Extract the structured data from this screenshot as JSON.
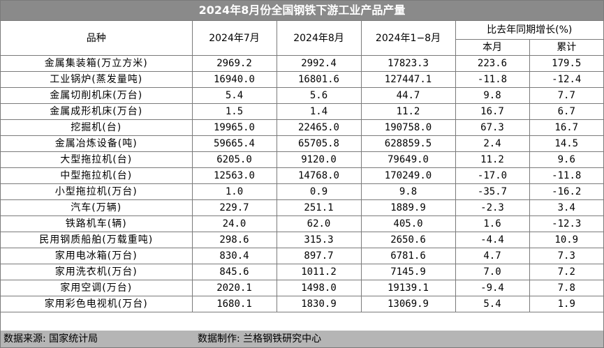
{
  "title": "2024年8月份全国钢铁下游工业产品产量",
  "headers": {
    "product": "品种",
    "jul": "2024年7月",
    "aug": "2024年8月",
    "ytd": "2024年1−8月",
    "yoy": "比去年同期增长(%)",
    "month": "本月",
    "cumulative": "累计"
  },
  "rows": [
    {
      "name": "金属集装箱(万立方米)",
      "jul": "2969.2",
      "aug": "2992.4",
      "ytd": "17823.3",
      "month": "223.6",
      "cum": "179.5"
    },
    {
      "name": "工业锅炉(蒸发量吨)",
      "jul": "16940.0",
      "aug": "16801.6",
      "ytd": "127447.1",
      "month": "-11.8",
      "cum": "-12.4"
    },
    {
      "name": "金属切削机床(万台)",
      "jul": "5.4",
      "aug": "5.6",
      "ytd": "44.7",
      "month": "9.8",
      "cum": "7.7"
    },
    {
      "name": "金属成形机床(万台)",
      "jul": "1.5",
      "aug": "1.4",
      "ytd": "11.2",
      "month": "16.7",
      "cum": "6.7"
    },
    {
      "name": "挖掘机(台)",
      "jul": "19965.0",
      "aug": "22465.0",
      "ytd": "190758.0",
      "month": "67.3",
      "cum": "16.7"
    },
    {
      "name": "金属冶炼设备(吨)",
      "jul": "59665.4",
      "aug": "65705.8",
      "ytd": "628859.5",
      "month": "2.4",
      "cum": "14.5"
    },
    {
      "name": "大型拖拉机(台)",
      "jul": "6205.0",
      "aug": "9120.0",
      "ytd": "79649.0",
      "month": "11.2",
      "cum": "9.6"
    },
    {
      "name": "中型拖拉机(台)",
      "jul": "12563.0",
      "aug": "14768.0",
      "ytd": "170249.0",
      "month": "-17.0",
      "cum": "-11.8"
    },
    {
      "name": "小型拖拉机(万台)",
      "jul": "1.0",
      "aug": "0.9",
      "ytd": "9.8",
      "month": "-35.7",
      "cum": "-16.2"
    },
    {
      "name": "汽车(万辆)",
      "jul": "229.7",
      "aug": "251.1",
      "ytd": "1889.9",
      "month": "-2.3",
      "cum": "3.4"
    },
    {
      "name": "铁路机车(辆)",
      "jul": "24.0",
      "aug": "62.0",
      "ytd": "405.0",
      "month": "1.6",
      "cum": "-12.3"
    },
    {
      "name": "民用钢质船舶(万载重吨)",
      "jul": "298.6",
      "aug": "315.3",
      "ytd": "2650.6",
      "month": "-4.4",
      "cum": "10.9"
    },
    {
      "name": "家用电冰箱(万台)",
      "jul": "830.4",
      "aug": "897.7",
      "ytd": "6781.6",
      "month": "4.7",
      "cum": "7.3"
    },
    {
      "name": "家用洗衣机(万台)",
      "jul": "845.6",
      "aug": "1011.2",
      "ytd": "7145.9",
      "month": "7.0",
      "cum": "7.2"
    },
    {
      "name": "家用空调(万台)",
      "jul": "2020.1",
      "aug": "1498.0",
      "ytd": "19139.1",
      "month": "-9.4",
      "cum": "7.8"
    },
    {
      "name": "家用彩色电视机(万台)",
      "jul": "1680.1",
      "aug": "1830.9",
      "ytd": "13069.9",
      "month": "5.4",
      "cum": "1.9"
    }
  ],
  "footer": {
    "source": "数据来源: 国家统计局",
    "producer": "数据制作: 兰格钢铁研究中心"
  }
}
